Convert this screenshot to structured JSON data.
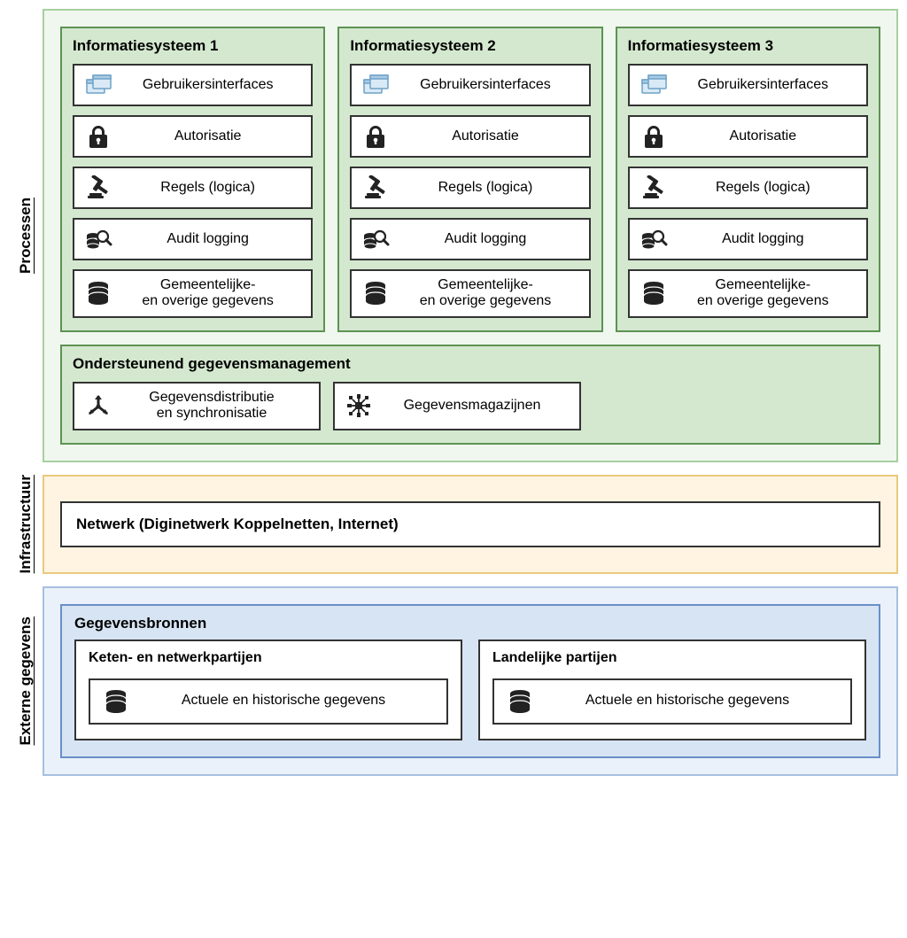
{
  "colors": {
    "processen_bg": "#f0f7ee",
    "processen_border": "#a7cfa1",
    "infra_bg": "#fef4e1",
    "infra_border": "#e9c97d",
    "externe_bg": "#eaf1fa",
    "externe_border": "#a7bfe0",
    "inner_green_bg": "#d4e8cf",
    "inner_green_border": "#5d9253",
    "inner_blue_bg": "#d7e4f3",
    "inner_blue_border": "#6a8fc7",
    "box_border": "#333333",
    "box_bg": "#ffffff",
    "icon_color": "#222222",
    "ui_icon_fill": "#d9eaf6",
    "ui_icon_stroke": "#6fa1c7"
  },
  "font": {
    "family": "Arial",
    "title_size": 17,
    "label_size": 16
  },
  "sections": {
    "processen": {
      "label": "Processen"
    },
    "infrastructuur": {
      "label": "Infrastructuur"
    },
    "externe": {
      "label": "Externe gegevens"
    }
  },
  "systems": [
    {
      "title": "Informatiesysteem 1"
    },
    {
      "title": "Informatiesysteem 2"
    },
    {
      "title": "Informatiesysteem 3"
    }
  ],
  "system_items": [
    {
      "icon": "ui",
      "label": "Gebruikersinterfaces"
    },
    {
      "icon": "lock",
      "label": "Autorisatie"
    },
    {
      "icon": "gavel",
      "label": "Regels (logica)"
    },
    {
      "icon": "audit",
      "label": "Audit logging"
    },
    {
      "icon": "database",
      "label": "Gemeentelijke-\nen overige gegevens"
    }
  ],
  "support": {
    "title": "Ondersteunend gegevensmanagement",
    "items": [
      {
        "icon": "distribute",
        "label": "Gegevensdistributie\nen synchronisatie"
      },
      {
        "icon": "hub",
        "label": "Gegevensmagazijnen"
      }
    ]
  },
  "network": {
    "title": "Netwerk (Diginetwerk Koppelnetten, Internet)"
  },
  "sources": {
    "title": "Gegevensbronnen",
    "columns": [
      {
        "title": "Keten- en netwerkpartijen",
        "item": {
          "icon": "database",
          "label": "Actuele  en historische gegevens"
        }
      },
      {
        "title": "Landelijke partijen",
        "item": {
          "icon": "database",
          "label": "Actuele  en historische gegevens"
        }
      }
    ]
  }
}
